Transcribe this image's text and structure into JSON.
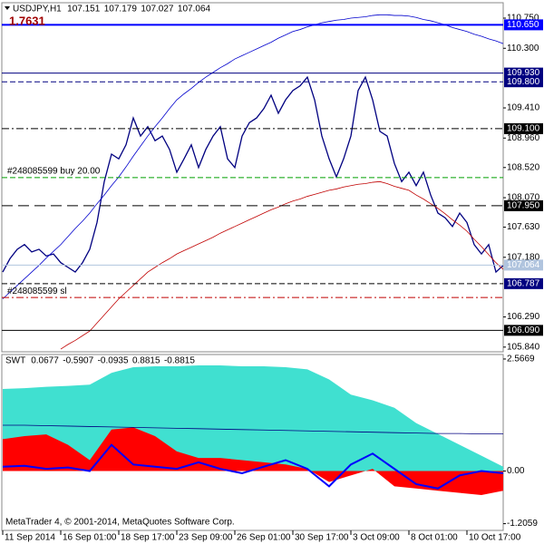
{
  "chart_data": [
    {
      "type": "line",
      "title": "USDJPY,H1",
      "ohlc": [
        107.151,
        107.179,
        107.027,
        107.064
      ],
      "annotation": "1.7631",
      "categories": [
        "11 Sep 2014",
        null,
        null,
        null,
        null,
        null,
        null,
        null,
        "16 Sep 01:00",
        null,
        null,
        null,
        null,
        null,
        null,
        null,
        "18 Sep 17:00",
        null,
        null,
        null,
        null,
        null,
        null,
        null,
        "23 Sep 09:00",
        null,
        null,
        null,
        null,
        null,
        null,
        null,
        "26 Sep 01:00",
        null,
        null,
        null,
        null,
        null,
        null,
        null,
        "30 Sep 17:00",
        null,
        null,
        null,
        null,
        null,
        null,
        null,
        "3 Oct 09:00",
        null,
        null,
        null,
        null,
        null,
        null,
        null,
        "8 Oct 01:00",
        null,
        null,
        null,
        null,
        null,
        null,
        null,
        "10 Oct 17:00",
        null,
        null,
        null,
        null,
        null
      ],
      "series": [
        {
          "color": "#000080",
          "width": 1.3,
          "values": [
            106.96,
            107.16,
            107.3,
            107.37,
            107.26,
            107.3,
            107.2,
            107.23,
            107.1,
            107.03,
            106.96,
            107.1,
            107.3,
            107.7,
            108.31,
            108.72,
            108.65,
            108.86,
            109.26,
            108.99,
            109.13,
            108.92,
            108.99,
            108.79,
            108.45,
            108.65,
            108.86,
            108.52,
            108.79,
            108.99,
            109.13,
            108.65,
            108.52,
            108.99,
            109.19,
            109.26,
            109.4,
            109.6,
            109.33,
            109.53,
            109.67,
            109.74,
            109.87,
            109.53,
            108.99,
            108.65,
            108.38,
            108.65,
            108.99,
            109.67,
            109.87,
            109.53,
            109.06,
            108.99,
            108.58,
            108.31,
            108.45,
            108.25,
            108.45,
            108.11,
            107.84,
            107.77,
            107.64,
            107.84,
            107.7,
            107.37,
            107.23,
            107.37,
            106.96,
            107.06
          ]
        },
        {
          "color": "#0000cd",
          "width": 0.8,
          "values": [
            106.56,
            106.66,
            106.76,
            106.86,
            106.96,
            107.06,
            107.17,
            107.27,
            107.37,
            107.49,
            107.61,
            107.72,
            107.84,
            107.98,
            108.11,
            108.25,
            108.38,
            108.53,
            108.69,
            108.84,
            108.99,
            109.13,
            109.26,
            109.4,
            109.53,
            109.62,
            109.7,
            109.79,
            109.87,
            109.94,
            110.01,
            110.07,
            110.14,
            110.19,
            110.24,
            110.29,
            110.34,
            110.39,
            110.45,
            110.5,
            110.55,
            110.58,
            110.62,
            110.65,
            110.68,
            110.7,
            110.72,
            110.73,
            110.75,
            110.76,
            110.77,
            110.79,
            110.8,
            110.8,
            110.79,
            110.79,
            110.78,
            110.76,
            110.73,
            110.71,
            110.68,
            110.65,
            110.61,
            110.58,
            110.55,
            110.51,
            110.48,
            110.44,
            110.41,
            110.37
          ]
        },
        {
          "color": "#c00000",
          "width": 0.8,
          "values": [
            null,
            null,
            null,
            null,
            null,
            null,
            null,
            null,
            105.81,
            105.88,
            105.94,
            106.01,
            106.08,
            106.2,
            106.32,
            106.44,
            106.56,
            106.66,
            106.76,
            106.86,
            106.96,
            107.03,
            107.1,
            107.16,
            107.23,
            107.28,
            107.33,
            107.38,
            107.43,
            107.48,
            107.54,
            107.59,
            107.64,
            107.69,
            107.74,
            107.79,
            107.84,
            107.89,
            107.93,
            107.98,
            108.02,
            108.05,
            108.09,
            108.12,
            108.15,
            108.18,
            108.2,
            108.23,
            108.25,
            108.27,
            108.28,
            108.3,
            108.31,
            108.28,
            108.24,
            108.21,
            108.18,
            108.11,
            108.05,
            107.98,
            107.91,
            107.83,
            107.74,
            107.66,
            107.57,
            107.45,
            107.34,
            107.22,
            107.1,
            107.0
          ]
        }
      ],
      "ylim": [
        105.77,
        110.98
      ],
      "yticks": [
        {
          "value": 110.75,
          "label": "110.750"
        },
        {
          "value": 110.3,
          "label": "110.300"
        },
        {
          "value": 109.41,
          "label": "109.410"
        },
        {
          "value": 108.96,
          "label": "108.960"
        },
        {
          "value": 108.52,
          "label": "108.520"
        },
        {
          "value": 108.07,
          "label": "108.070"
        },
        {
          "value": 107.63,
          "label": "107.630"
        },
        {
          "value": 107.18,
          "label": "107.180"
        },
        {
          "value": 106.29,
          "label": "106.290"
        },
        {
          "value": 105.84,
          "label": "105.840"
        }
      ],
      "hlines": [
        {
          "value": 110.65,
          "label": "110.650",
          "color": "#0000ff",
          "style": "solid",
          "width": 2,
          "box": "#0000ff"
        },
        {
          "value": 109.93,
          "label": "109.930",
          "color": "#000080",
          "style": "solid",
          "width": 1,
          "box": "#000080"
        },
        {
          "value": 109.8,
          "label": "109.800",
          "color": "#000080",
          "style": "dash",
          "width": 1,
          "box": "#000080"
        },
        {
          "value": 109.1,
          "label": "109.100",
          "color": "#000000",
          "style": "dashdot",
          "width": 1,
          "box": "#000000"
        },
        {
          "value": 108.37,
          "text": "#248085599 buy 20.00",
          "color": "#00a000",
          "style": "dash",
          "width": 1
        },
        {
          "value": 107.95,
          "label": "107.950",
          "color": "#000000",
          "style": "longdash",
          "width": 1,
          "box": "#000000"
        },
        {
          "value": 107.064,
          "label": "107.064",
          "color": "#b0c4de",
          "style": "solid",
          "width": 1,
          "box": "#b0c4de"
        },
        {
          "value": 106.787,
          "label": "106.787",
          "color": "#000000",
          "style": "dash",
          "width": 1,
          "box": "#000080"
        },
        {
          "value": 106.58,
          "text": "#248085599 sl",
          "color": "#c00000",
          "style": "dashdot",
          "width": 1
        },
        {
          "value": 106.09,
          "label": "106.090",
          "color": "#000000",
          "style": "solid",
          "width": 1,
          "box": "#000000"
        }
      ]
    },
    {
      "type": "area",
      "title": "SWT",
      "header_values": [
        0.0677,
        -0.5907,
        -0.0935,
        0.8815,
        -0.8815
      ],
      "categories": [
        null,
        null,
        null,
        null,
        null,
        null,
        null,
        null,
        null,
        null,
        null,
        null,
        null,
        null,
        null,
        null,
        null,
        null,
        null,
        null,
        null,
        null,
        null,
        null
      ],
      "series": [
        {
          "color": "#40e0d0",
          "style": "area",
          "values": [
            1.88,
            1.9,
            1.93,
            1.95,
            1.98,
            2.25,
            2.38,
            2.4,
            2.4,
            2.42,
            2.42,
            2.4,
            2.4,
            2.38,
            2.33,
            2.1,
            1.75,
            1.62,
            1.45,
            1.1,
            0.85,
            0.6,
            0.35,
            0.1
          ]
        },
        {
          "color": "#ff0000",
          "style": "area",
          "values": [
            0.73,
            0.8,
            0.84,
            0.6,
            0.25,
            0.95,
            1.0,
            0.8,
            0.45,
            0.3,
            0.3,
            0.25,
            0.2,
            0.15,
            0.05,
            -0.25,
            -0.1,
            0.05,
            -0.35,
            -0.4,
            -0.45,
            -0.5,
            -0.55,
            -0.45
          ]
        },
        {
          "color": "#000080",
          "style": "line",
          "width": 0.8,
          "values": [
            1.05,
            1.05,
            1.04,
            1.03,
            1.02,
            1.01,
            1.0,
            0.99,
            0.98,
            0.97,
            0.96,
            0.95,
            0.94,
            0.93,
            0.92,
            0.91,
            0.9,
            0.89,
            0.88,
            0.87,
            0.86,
            0.86,
            0.85,
            0.85
          ]
        },
        {
          "color": "#0000ff",
          "style": "line",
          "width": 2,
          "values": [
            0.1,
            0.12,
            0.05,
            0.08,
            0.0,
            0.6,
            0.15,
            0.1,
            0.05,
            0.2,
            0.05,
            -0.05,
            0.1,
            0.25,
            0.05,
            -0.35,
            0.15,
            0.4,
            0.05,
            -0.3,
            -0.4,
            -0.1,
            0.0,
            -0.05
          ]
        }
      ],
      "ylim": [
        -1.36,
        2.67
      ],
      "yticks": [
        2.5669,
        {
          "value": 0,
          "label": "0.00"
        },
        -1.2059
      ]
    }
  ],
  "footer": "MetaTrader 4, © 2001-2014, MetaQuotes Software Corp."
}
